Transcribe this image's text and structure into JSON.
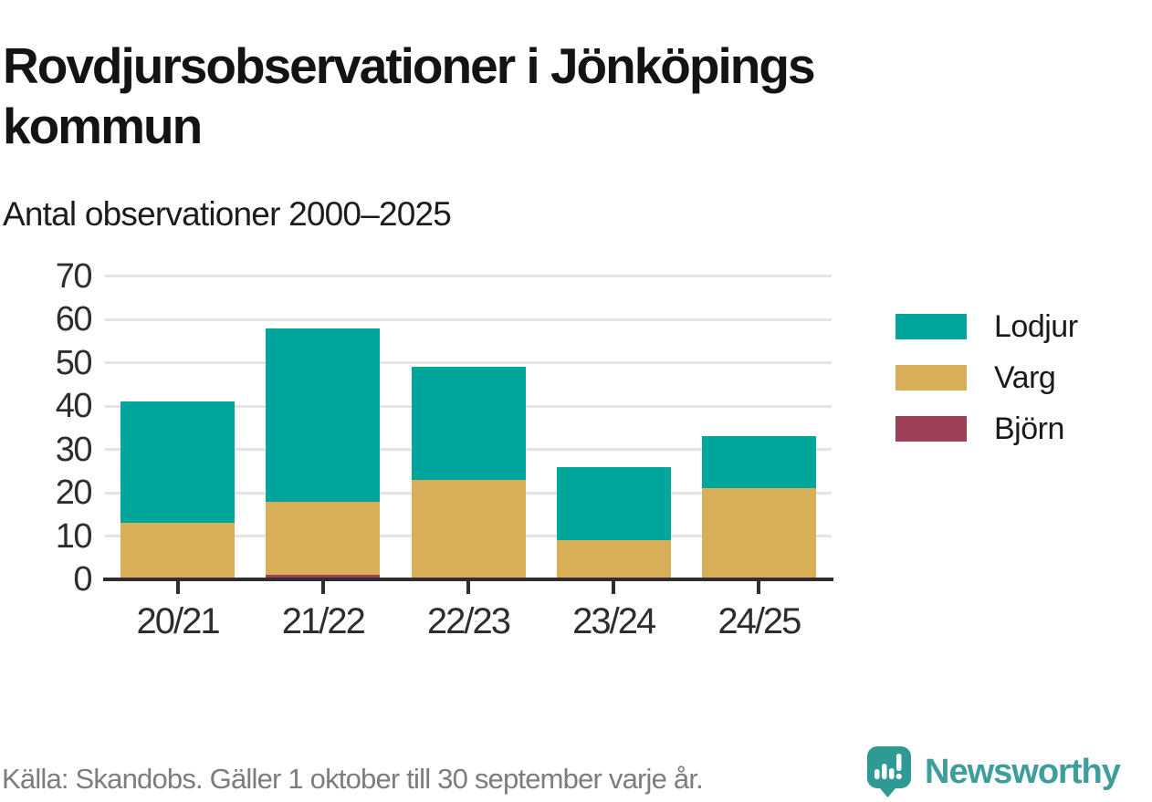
{
  "header": {
    "title": "Rovdjursobservationer i Jönköpings kommun",
    "subtitle": "Antal observationer 2000–2025"
  },
  "chart_data": {
    "type": "bar",
    "stacked": true,
    "title": "Rovdjursobservationer i Jönköpings kommun",
    "subtitle": "Antal observationer 2000–2025",
    "categories": [
      "20/21",
      "21/22",
      "22/23",
      "23/24",
      "24/25"
    ],
    "series": [
      {
        "name": "Lodjur",
        "color": "#00a69c",
        "values": [
          28,
          40,
          26,
          17,
          12
        ]
      },
      {
        "name": "Varg",
        "color": "#d9ae58",
        "values": [
          13,
          17,
          23,
          9,
          21
        ]
      },
      {
        "name": "Björn",
        "color": "#9e4158",
        "values": [
          0,
          1,
          0,
          0,
          0
        ]
      }
    ],
    "stack_order_bottom_to_top": [
      "Björn",
      "Varg",
      "Lodjur"
    ],
    "totals": [
      41,
      58,
      49,
      26,
      33
    ],
    "y_ticks": [
      0,
      10,
      20,
      30,
      40,
      50,
      60,
      70
    ],
    "ylim": [
      0,
      71.6
    ],
    "xlabel": "",
    "ylabel": "",
    "grid": "horizontal",
    "legend_position": "right"
  },
  "footer": {
    "source": "Källa: Skandobs. Gäller 1 oktober till 30 september varje år.",
    "brand": "Newsworthy"
  },
  "colors": {
    "lodjur": "#00a69c",
    "varg": "#d9ae58",
    "bjorn": "#9e4158",
    "axis": "#2e2e2e",
    "gridline": "#e4e4e4",
    "title_text": "#131313",
    "muted_text": "#7d7d7d",
    "brand_teal": "#3f9e99"
  }
}
